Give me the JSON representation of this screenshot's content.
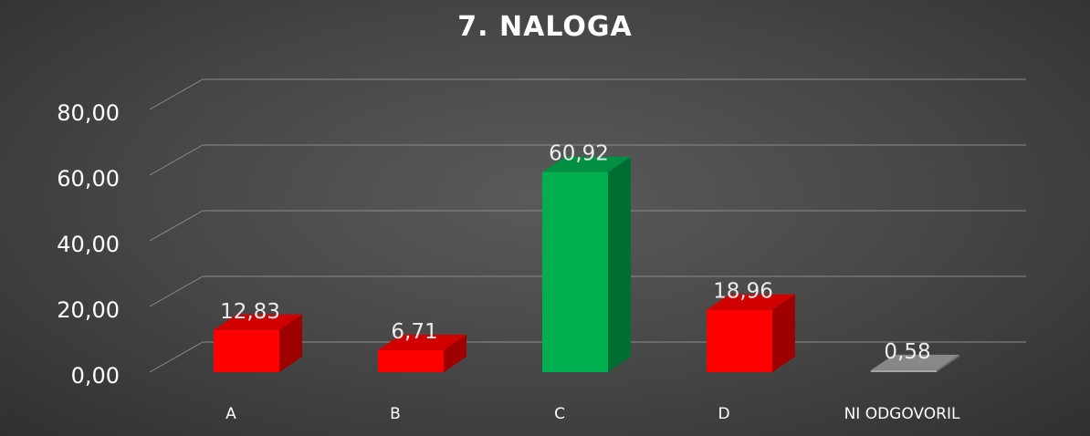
{
  "chart_data": {
    "type": "bar",
    "title": "7. NALOGA",
    "categories": [
      "A",
      "B",
      "C",
      "D",
      "NI ODGOVORIL"
    ],
    "values": [
      12.83,
      6.71,
      60.92,
      18.96,
      0.58
    ],
    "value_labels": [
      "12,83",
      "6,71",
      "60,92",
      "18,96",
      "0,58"
    ],
    "colors": [
      "#ff0000",
      "#ff0000",
      "#00b050",
      "#ff0000",
      "#a6a6a6"
    ],
    "ylim": [
      0,
      80
    ],
    "yticks": [
      0,
      20,
      40,
      60,
      80
    ],
    "ytick_labels": [
      "0,00",
      "20,00",
      "40,00",
      "60,00",
      "80,00"
    ],
    "grid": true,
    "legend": "none",
    "style": "3d-column"
  }
}
